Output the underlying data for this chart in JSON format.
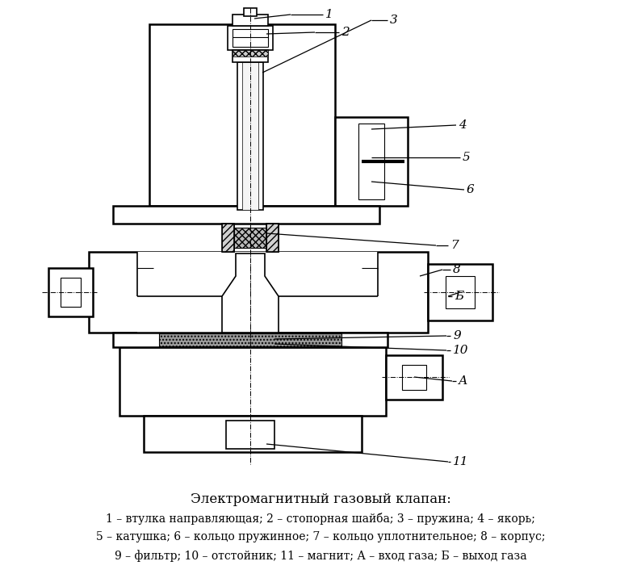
{
  "title": "Электромагнитный газовый клапан:",
  "legend_line1": "1 – втулка направляющая; 2 – стопорная шайба; 3 – пружина; 4 – якорь;",
  "legend_line2": "5 – катушка; 6 – кольцо пружинное; 7 – кольцо уплотнительное; 8 – корпус;",
  "legend_line3": "9 – фильтр; 10 – отстойник; 11 – магнит; А – вход газа; Б – выход газа",
  "background": "#ffffff",
  "fig_width": 7.94,
  "fig_height": 7.16,
  "dpi": 100
}
